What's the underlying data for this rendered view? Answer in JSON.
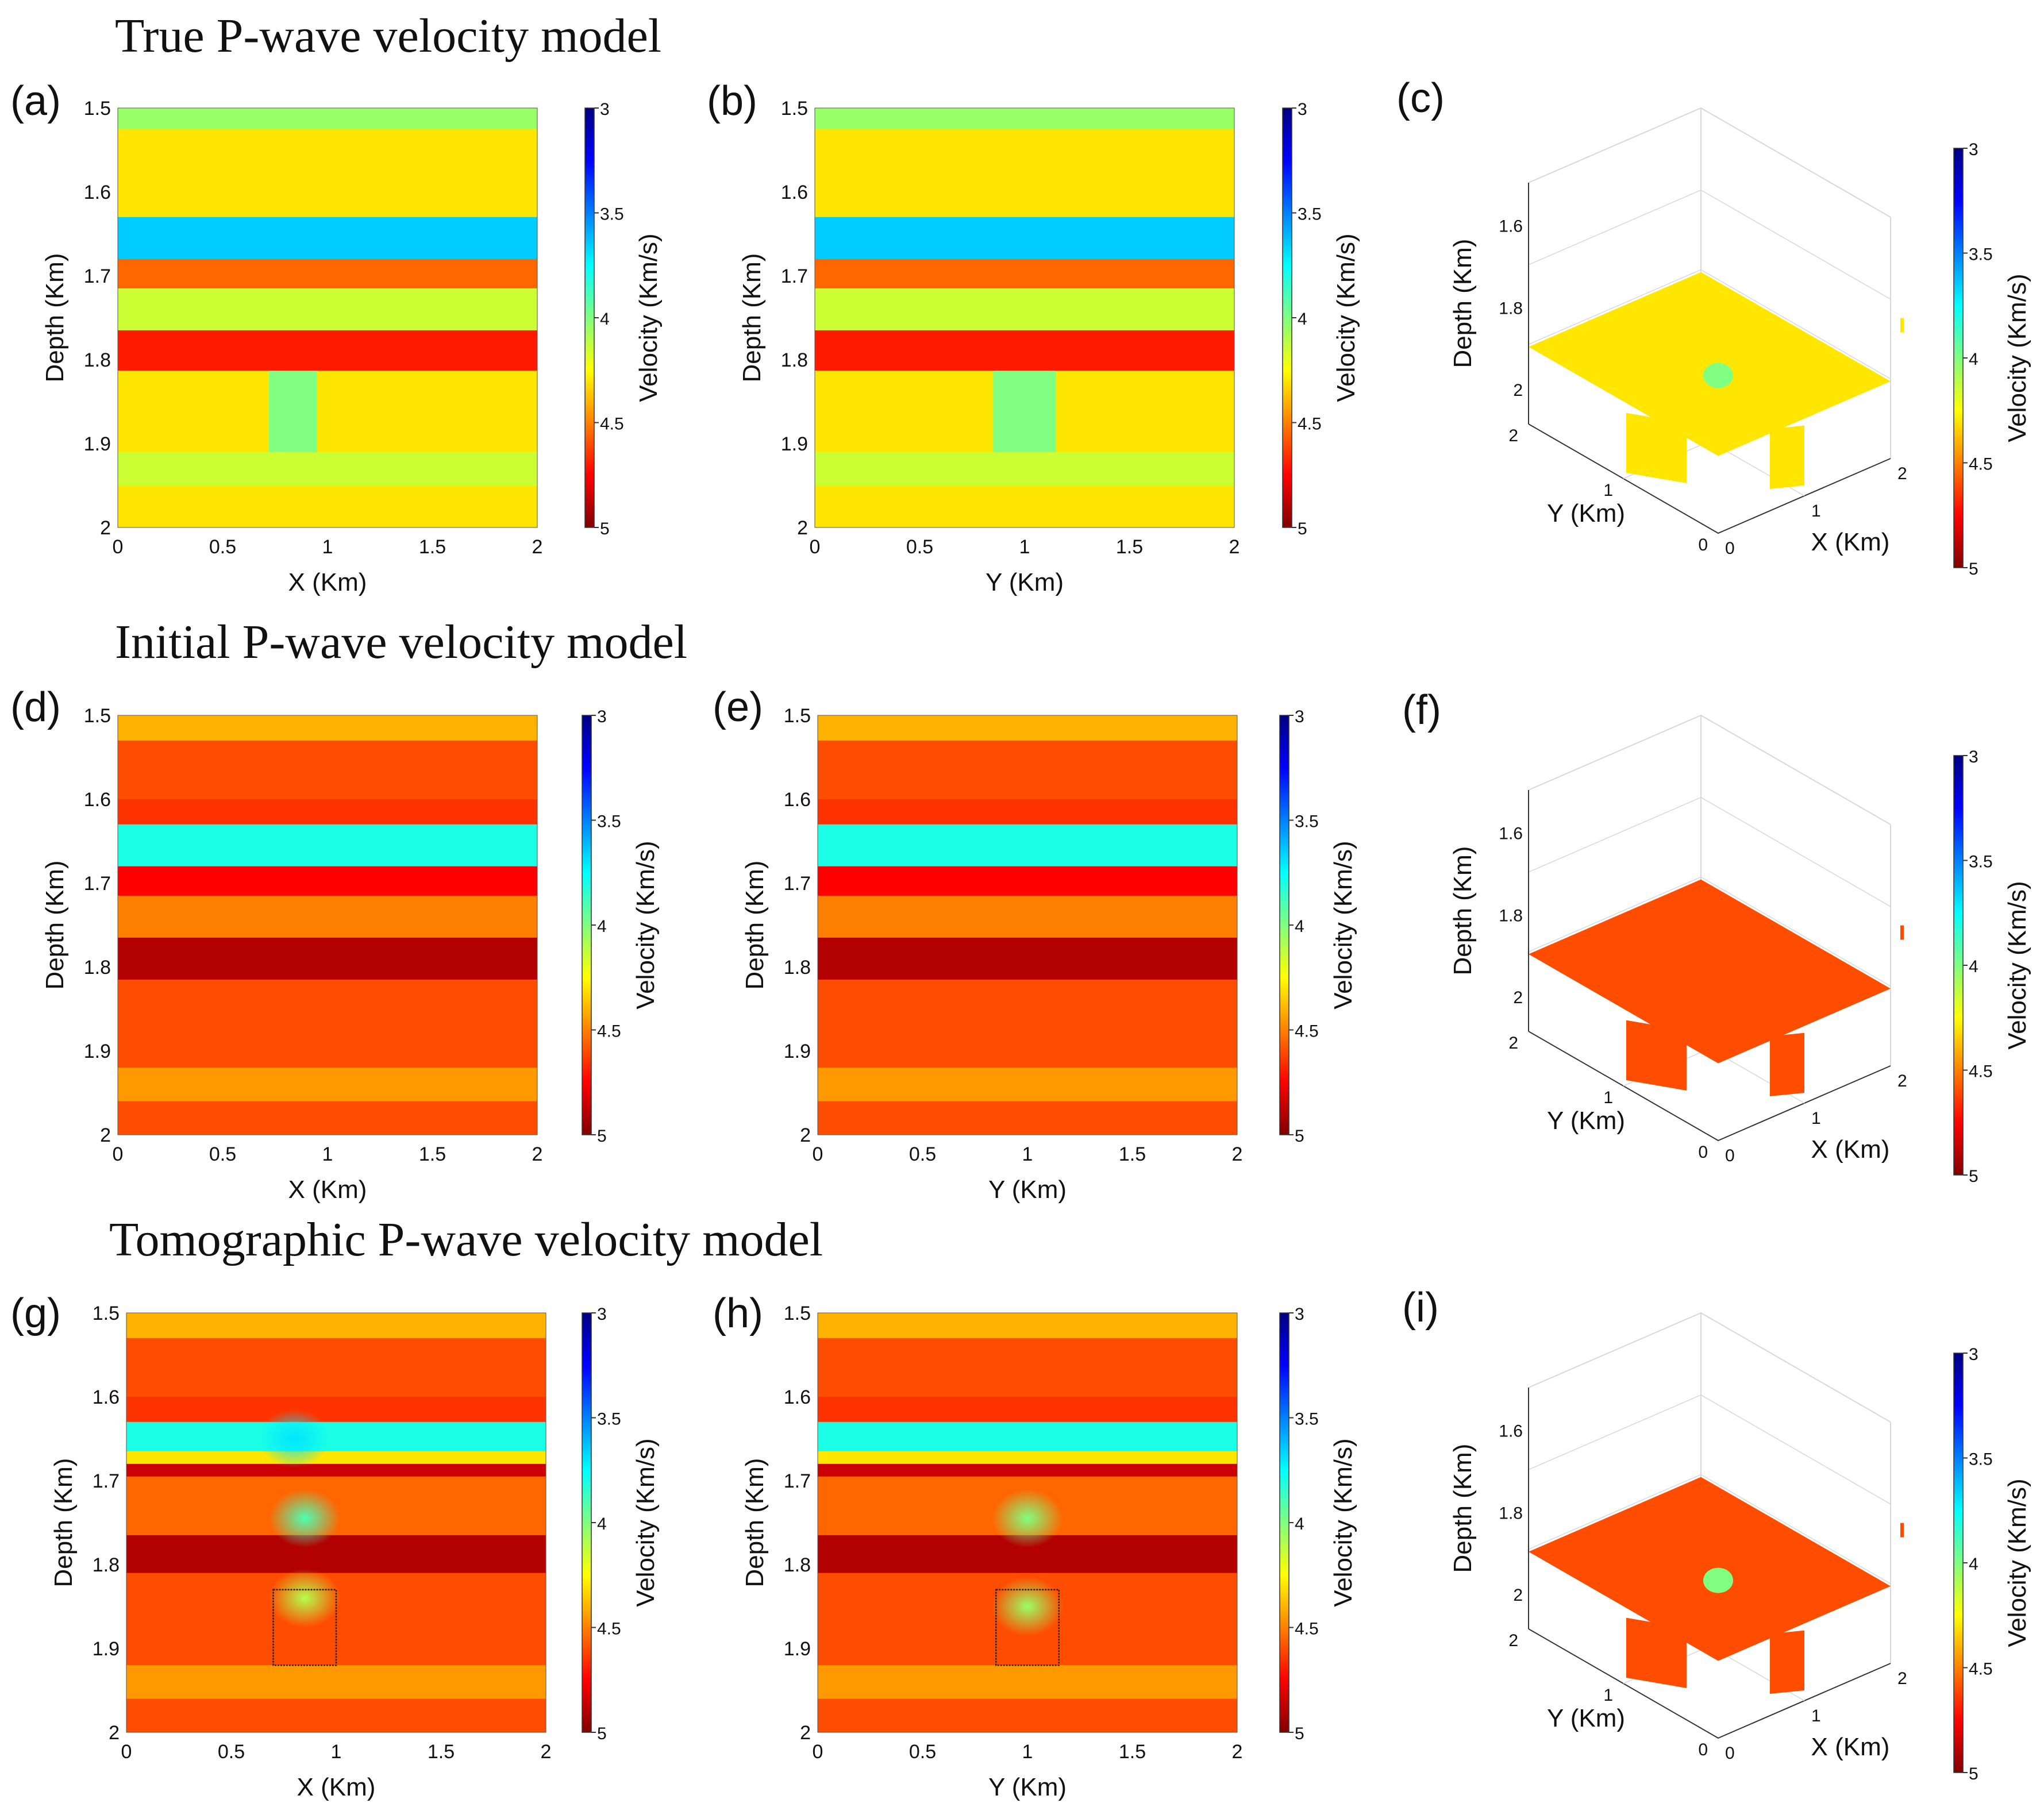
{
  "figure": {
    "row_titles": [
      "True P-wave velocity model",
      "Initial P-wave velocity model",
      "Tomographic P-wave velocity model"
    ],
    "colorbar": {
      "label": "Velocity (Km/s)",
      "ticks": [
        "3",
        "3.5",
        "4",
        "4.5",
        "5"
      ],
      "range": [
        3,
        5
      ],
      "colormap": "jet-reversed",
      "colors_high_to_low": [
        "#800000",
        "#ff0000",
        "#ff8000",
        "#ffff00",
        "#80ff80",
        "#00ffff",
        "#0080ff",
        "#0000ff",
        "#000080"
      ]
    },
    "depth_axis": {
      "label": "Depth (Km)",
      "ticks": [
        "1.5",
        "1.6",
        "1.7",
        "1.8",
        "1.9",
        "2"
      ]
    },
    "lateral_ticks": [
      "0",
      "0.5",
      "1",
      "1.5",
      "2"
    ],
    "x_label": "X (Km)",
    "y_label": "Y (Km)",
    "panel_3d": {
      "depth_ticks": [
        "1.6",
        "1.8",
        "2"
      ],
      "x_ticks": [
        "0",
        "1",
        "2"
      ],
      "y_ticks": [
        "0",
        "1",
        "2"
      ]
    }
  },
  "chart_data": [
    {
      "panel": "(a)",
      "type": "heatmap",
      "xlabel": "X (Km)",
      "ylabel": "Depth (Km)",
      "xlim": [
        0,
        2
      ],
      "ylim": [
        1.5,
        2
      ],
      "layers": [
        {
          "top": 1.5,
          "bottom": 1.525,
          "velocity": 4.05
        },
        {
          "top": 1.525,
          "bottom": 1.63,
          "velocity": 4.3
        },
        {
          "top": 1.63,
          "bottom": 1.68,
          "velocity": 3.65
        },
        {
          "top": 1.68,
          "bottom": 1.715,
          "velocity": 4.55
        },
        {
          "top": 1.715,
          "bottom": 1.765,
          "velocity": 4.15
        },
        {
          "top": 1.765,
          "bottom": 1.813,
          "velocity": 4.7
        },
        {
          "top": 1.813,
          "bottom": 1.91,
          "velocity": 4.3
        },
        {
          "top": 1.91,
          "bottom": 1.95,
          "velocity": 4.15
        },
        {
          "top": 1.95,
          "bottom": 2.0,
          "velocity": 4.3
        }
      ],
      "anomaly": {
        "h_min": 0.72,
        "h_max": 0.95,
        "d_min": 1.813,
        "d_max": 1.91,
        "velocity": 4.0
      }
    },
    {
      "panel": "(b)",
      "type": "heatmap",
      "xlabel": "Y (Km)",
      "ylabel": "Depth (Km)",
      "xlim": [
        0,
        2
      ],
      "ylim": [
        1.5,
        2
      ],
      "layers": [
        {
          "top": 1.5,
          "bottom": 1.525,
          "velocity": 4.05
        },
        {
          "top": 1.525,
          "bottom": 1.63,
          "velocity": 4.3
        },
        {
          "top": 1.63,
          "bottom": 1.68,
          "velocity": 3.65
        },
        {
          "top": 1.68,
          "bottom": 1.715,
          "velocity": 4.55
        },
        {
          "top": 1.715,
          "bottom": 1.765,
          "velocity": 4.15
        },
        {
          "top": 1.765,
          "bottom": 1.813,
          "velocity": 4.7
        },
        {
          "top": 1.813,
          "bottom": 1.91,
          "velocity": 4.3
        },
        {
          "top": 1.91,
          "bottom": 1.95,
          "velocity": 4.15
        },
        {
          "top": 1.95,
          "bottom": 2.0,
          "velocity": 4.3
        }
      ],
      "anomaly": {
        "h_min": 0.85,
        "h_max": 1.15,
        "d_min": 1.813,
        "d_max": 1.91,
        "velocity": 4.0
      }
    },
    {
      "panel": "(c)",
      "type": "heatmap",
      "view": "3d",
      "xlabel": "X (Km)",
      "ylabel": "Y (Km)",
      "zlabel": "Depth (Km)",
      "slice_velocity": 4.3,
      "anomaly_velocity": 4.0
    },
    {
      "panel": "(d)",
      "type": "heatmap",
      "xlabel": "X (Km)",
      "ylabel": "Depth (Km)",
      "xlim": [
        0,
        2
      ],
      "ylim": [
        1.5,
        2
      ],
      "layers": [
        {
          "top": 1.5,
          "bottom": 1.53,
          "velocity": 4.4
        },
        {
          "top": 1.53,
          "bottom": 1.6,
          "velocity": 4.6
        },
        {
          "top": 1.6,
          "bottom": 1.63,
          "velocity": 4.65
        },
        {
          "top": 1.63,
          "bottom": 1.68,
          "velocity": 3.8
        },
        {
          "top": 1.68,
          "bottom": 1.715,
          "velocity": 4.75
        },
        {
          "top": 1.715,
          "bottom": 1.765,
          "velocity": 4.5
        },
        {
          "top": 1.765,
          "bottom": 1.815,
          "velocity": 4.9
        },
        {
          "top": 1.815,
          "bottom": 1.92,
          "velocity": 4.6
        },
        {
          "top": 1.92,
          "bottom": 1.96,
          "velocity": 4.45
        },
        {
          "top": 1.96,
          "bottom": 2.0,
          "velocity": 4.6
        }
      ]
    },
    {
      "panel": "(e)",
      "type": "heatmap",
      "xlabel": "Y (Km)",
      "ylabel": "Depth (Km)",
      "xlim": [
        0,
        2
      ],
      "ylim": [
        1.5,
        2
      ],
      "layers": [
        {
          "top": 1.5,
          "bottom": 1.53,
          "velocity": 4.4
        },
        {
          "top": 1.53,
          "bottom": 1.6,
          "velocity": 4.6
        },
        {
          "top": 1.6,
          "bottom": 1.63,
          "velocity": 4.65
        },
        {
          "top": 1.63,
          "bottom": 1.68,
          "velocity": 3.8
        },
        {
          "top": 1.68,
          "bottom": 1.715,
          "velocity": 4.75
        },
        {
          "top": 1.715,
          "bottom": 1.765,
          "velocity": 4.5
        },
        {
          "top": 1.765,
          "bottom": 1.815,
          "velocity": 4.9
        },
        {
          "top": 1.815,
          "bottom": 1.92,
          "velocity": 4.6
        },
        {
          "top": 1.92,
          "bottom": 1.96,
          "velocity": 4.45
        },
        {
          "top": 1.96,
          "bottom": 2.0,
          "velocity": 4.6
        }
      ]
    },
    {
      "panel": "(f)",
      "type": "heatmap",
      "view": "3d",
      "xlabel": "X (Km)",
      "ylabel": "Y (Km)",
      "zlabel": "Depth (Km)",
      "slice_velocity": 4.6
    },
    {
      "panel": "(g)",
      "type": "heatmap",
      "xlabel": "X (Km)",
      "ylabel": "Depth (Km)",
      "xlim": [
        0,
        2
      ],
      "ylim": [
        1.5,
        2
      ],
      "layers": [
        {
          "top": 1.5,
          "bottom": 1.53,
          "velocity": 4.4
        },
        {
          "top": 1.53,
          "bottom": 1.6,
          "velocity": 4.6
        },
        {
          "top": 1.6,
          "bottom": 1.63,
          "velocity": 4.65
        },
        {
          "top": 1.63,
          "bottom": 1.665,
          "velocity": 3.8
        },
        {
          "top": 1.665,
          "bottom": 1.68,
          "velocity": 4.3
        },
        {
          "top": 1.68,
          "bottom": 1.695,
          "velocity": 4.85
        },
        {
          "top": 1.695,
          "bottom": 1.765,
          "velocity": 4.55
        },
        {
          "top": 1.765,
          "bottom": 1.81,
          "velocity": 4.9
        },
        {
          "top": 1.81,
          "bottom": 1.92,
          "velocity": 4.6
        },
        {
          "top": 1.92,
          "bottom": 1.96,
          "velocity": 4.45
        },
        {
          "top": 1.96,
          "bottom": 2.0,
          "velocity": 4.6
        }
      ],
      "blobs": [
        {
          "center_h": 0.85,
          "center_d": 1.745,
          "velocity": 3.9
        },
        {
          "center_h": 0.85,
          "center_d": 1.84,
          "velocity": 4.1
        },
        {
          "center_h": 0.8,
          "center_d": 1.65,
          "velocity": 3.7
        }
      ],
      "outline": {
        "h_min": 0.7,
        "h_max": 1.0,
        "d_min": 1.83,
        "d_max": 1.92
      }
    },
    {
      "panel": "(h)",
      "type": "heatmap",
      "xlabel": "Y (Km)",
      "ylabel": "Depth (Km)",
      "xlim": [
        0,
        2
      ],
      "ylim": [
        1.5,
        2
      ],
      "layers": [
        {
          "top": 1.5,
          "bottom": 1.53,
          "velocity": 4.4
        },
        {
          "top": 1.53,
          "bottom": 1.6,
          "velocity": 4.6
        },
        {
          "top": 1.6,
          "bottom": 1.63,
          "velocity": 4.65
        },
        {
          "top": 1.63,
          "bottom": 1.665,
          "velocity": 3.8
        },
        {
          "top": 1.665,
          "bottom": 1.68,
          "velocity": 4.3
        },
        {
          "top": 1.68,
          "bottom": 1.695,
          "velocity": 4.85
        },
        {
          "top": 1.695,
          "bottom": 1.765,
          "velocity": 4.55
        },
        {
          "top": 1.765,
          "bottom": 1.81,
          "velocity": 4.9
        },
        {
          "top": 1.81,
          "bottom": 1.92,
          "velocity": 4.6
        },
        {
          "top": 1.92,
          "bottom": 1.96,
          "velocity": 4.45
        },
        {
          "top": 1.96,
          "bottom": 2.0,
          "velocity": 4.6
        }
      ],
      "blobs": [
        {
          "center_h": 1.0,
          "center_d": 1.745,
          "velocity": 4.0
        },
        {
          "center_h": 1.0,
          "center_d": 1.85,
          "velocity": 4.05
        }
      ],
      "outline": {
        "h_min": 0.85,
        "h_max": 1.15,
        "d_min": 1.83,
        "d_max": 1.92
      }
    },
    {
      "panel": "(i)",
      "type": "heatmap",
      "view": "3d",
      "xlabel": "X (Km)",
      "ylabel": "Y (Km)",
      "zlabel": "Depth (Km)",
      "slice_velocity": 4.6,
      "anomaly_velocity": 4.0
    }
  ]
}
